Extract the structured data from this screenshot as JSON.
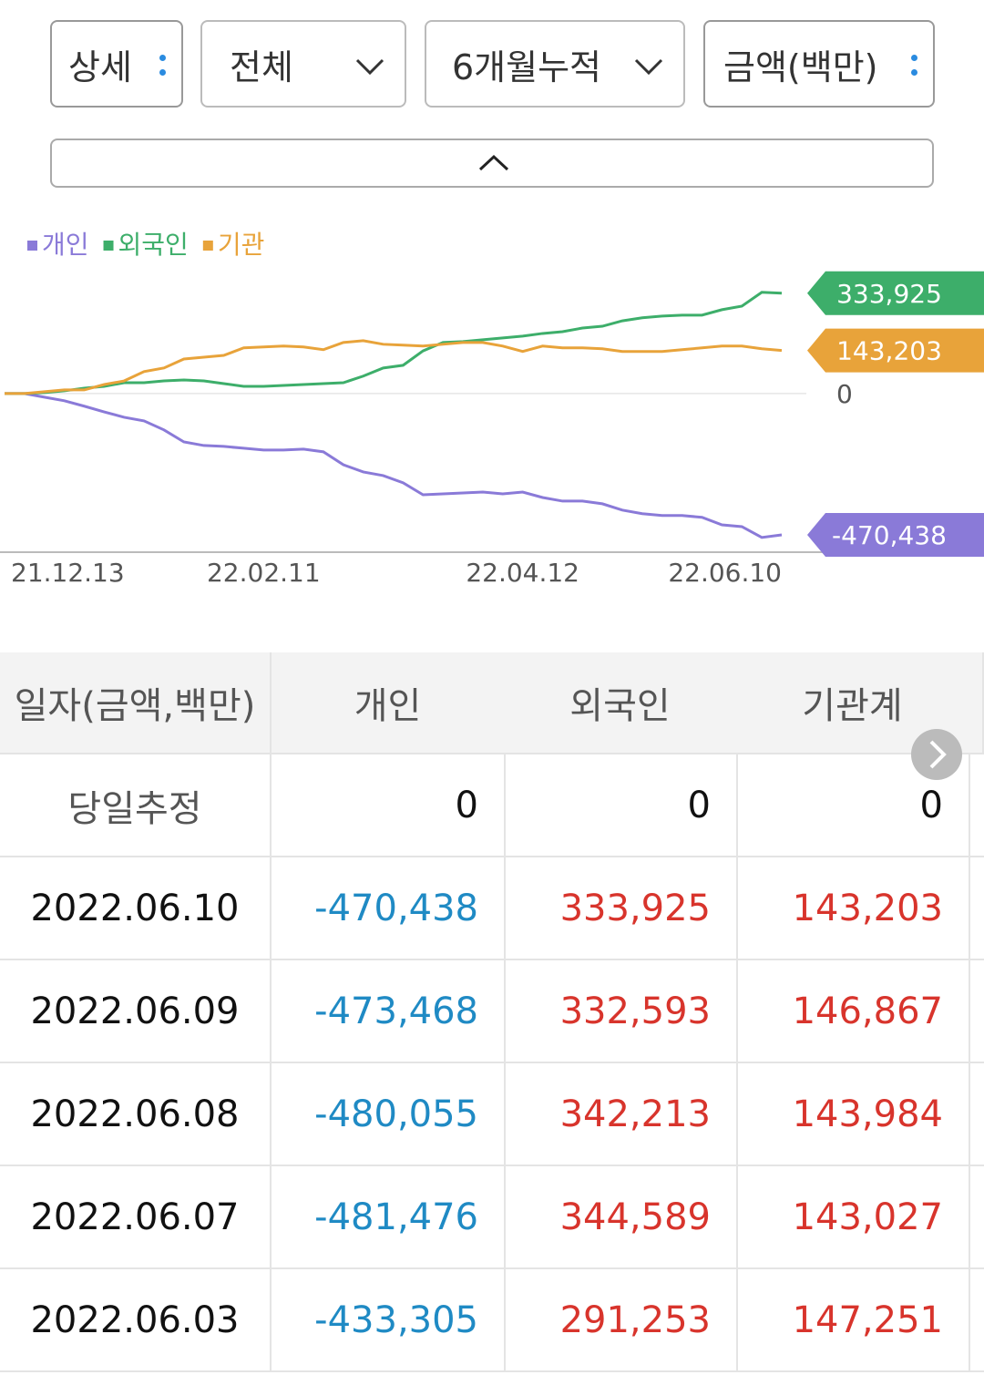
{
  "controls": {
    "dropdowns": [
      "상세",
      "전체",
      "6개월누적",
      "금액(백만)"
    ]
  },
  "chart_data": {
    "type": "line",
    "categories": [
      "21.12.13",
      null,
      null,
      null,
      null,
      null,
      null,
      null,
      null,
      null,
      null,
      null,
      null,
      "22.02.11",
      null,
      null,
      null,
      null,
      null,
      null,
      null,
      null,
      null,
      null,
      null,
      null,
      "22.04.12",
      null,
      null,
      null,
      null,
      null,
      null,
      null,
      null,
      null,
      null,
      null,
      null,
      "22.06.10"
    ],
    "ylim": [
      -525000,
      400000
    ],
    "yticks": [
      0
    ],
    "grid": true,
    "series": [
      {
        "name": "개인",
        "color": "#8a7ad8",
        "end_label": "-470,438",
        "values": [
          0,
          0,
          -12000,
          -24000,
          -42000,
          -61000,
          -79000,
          -91000,
          -121000,
          -161000,
          -173000,
          -176000,
          -182000,
          -188000,
          -188000,
          -185000,
          -194000,
          -237000,
          -261000,
          -273000,
          -297000,
          -337000,
          -334000,
          -331000,
          -328000,
          -334000,
          -328000,
          -346000,
          -358000,
          -358000,
          -367000,
          -388000,
          -400000,
          -406000,
          -406000,
          -412000,
          -437000,
          -443000,
          -479000,
          -470438
        ]
      },
      {
        "name": "외국인",
        "color": "#3dae6a",
        "end_label": "333,925",
        "values": [
          0,
          0,
          3000,
          9000,
          18000,
          24000,
          36000,
          36000,
          42000,
          45000,
          42000,
          33000,
          24000,
          24000,
          27000,
          30000,
          33000,
          36000,
          58000,
          85000,
          94000,
          142000,
          170000,
          173000,
          179000,
          185000,
          191000,
          200000,
          206000,
          218000,
          224000,
          242000,
          252000,
          258000,
          261000,
          261000,
          279000,
          291000,
          337000,
          333925
        ]
      },
      {
        "name": "기관",
        "color": "#e8a33a",
        "end_label": "143,203",
        "values": [
          0,
          0,
          6000,
          12000,
          12000,
          30000,
          42000,
          73000,
          85000,
          115000,
          121000,
          127000,
          152000,
          155000,
          158000,
          155000,
          146000,
          170000,
          176000,
          164000,
          161000,
          158000,
          164000,
          170000,
          170000,
          158000,
          140000,
          158000,
          152000,
          152000,
          149000,
          140000,
          140000,
          140000,
          146000,
          152000,
          158000,
          158000,
          149000,
          143203
        ]
      }
    ]
  },
  "table": {
    "header": [
      "일자(금액,백만)",
      "개인",
      "외국인",
      "기관계"
    ],
    "rows": [
      [
        "당일추정",
        "0",
        "0",
        "0"
      ],
      [
        "2022.06.10",
        "-470,438",
        "333,925",
        "143,203"
      ],
      [
        "2022.06.09",
        "-473,468",
        "332,593",
        "146,867"
      ],
      [
        "2022.06.08",
        "-480,055",
        "342,213",
        "143,984"
      ],
      [
        "2022.06.07",
        "-481,476",
        "344,589",
        "143,027"
      ],
      [
        "2022.06.03",
        "-433,305",
        "291,253",
        "147,251"
      ]
    ]
  }
}
